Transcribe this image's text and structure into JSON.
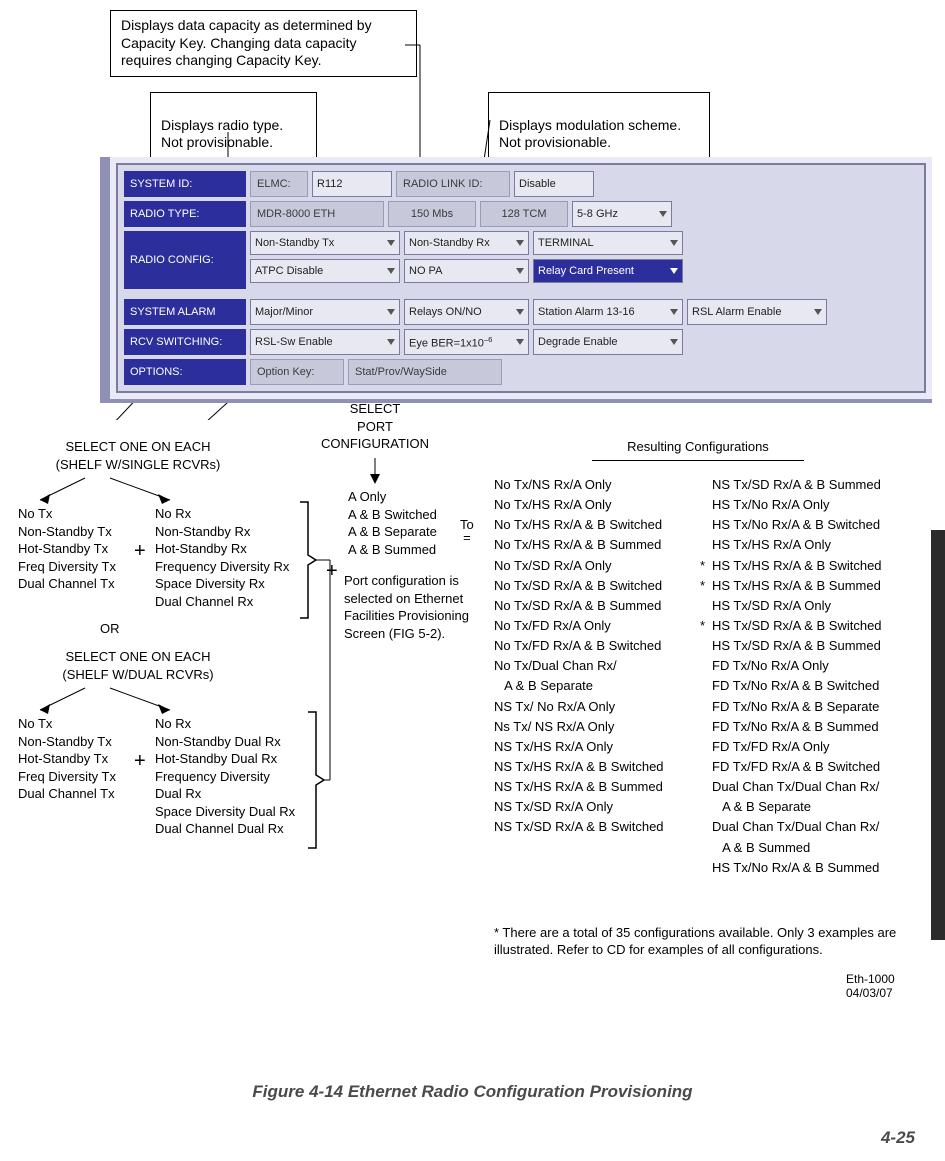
{
  "callouts": {
    "capacity": "Displays data capacity as determined by Capacity Key. Changing data capacity requires changing Capacity Key.",
    "radio_type": "Displays radio type.\nNot provisionable.",
    "modulation": "Displays modulation scheme.\nNot provisionable."
  },
  "panel": {
    "rows": {
      "system_id": {
        "label": "SYSTEM ID:",
        "elmc_label": "ELMC:",
        "elmc_value": "R112",
        "radio_link_label": "RADIO LINK ID:",
        "radio_link_value": "Disable"
      },
      "radio_type": {
        "label": "RADIO TYPE:",
        "type_value": "MDR-8000 ETH",
        "capacity_value": "150 Mbs",
        "tcm_value": "128 TCM",
        "freq_value": "5-8 GHz"
      },
      "radio_config": {
        "label": "RADIO CONFIG:",
        "tx_value": "Non-Standby Tx",
        "rx_value": "Non-Standby Rx",
        "term_value": "TERMINAL",
        "atpc_value": "ATPC Disable",
        "pa_value": "NO PA",
        "relay_value": "Relay Card Present"
      },
      "system_alarm": {
        "label": "SYSTEM ALARM",
        "major_value": "Major/Minor",
        "relays_value": "Relays ON/NO",
        "station_value": "Station Alarm 13-16",
        "rsl_value": "RSL Alarm Enable"
      },
      "rcv_switching": {
        "label": "RCV SWITCHING:",
        "rsl_sw_value": "RSL-Sw Enable",
        "eye_value_prefix": "Eye BER=1x10",
        "eye_value_exp": "–6",
        "degrade_value": "Degrade Enable"
      },
      "options": {
        "label": "OPTIONS:",
        "opt_key_label": "Option Key:",
        "stat_value": "Stat/Prov/WaySide"
      }
    }
  },
  "selectors": {
    "single_header": "SELECT ONE ON EACH\n(SHELF W/SINGLE RCVRs)",
    "dual_header": "SELECT ONE ON EACH\n(SHELF W/DUAL RCVRs)",
    "port_header": "SELECT\nPORT\nCONFIGURATION",
    "resulting_header": "Resulting Configurations",
    "tx_list_single": "No Tx\nNon-Standby Tx\nHot-Standby Tx\nFreq Diversity Tx\nDual Channel Tx",
    "rx_list_single": "No Rx\nNon-Standby Rx\nHot-Standby Rx\nFrequency Diversity Rx\nSpace Diversity Rx\nDual Channel Rx",
    "or_label": "OR",
    "tx_list_dual": "No Tx\nNon-Standby Tx\nHot-Standby Tx\nFreq Diversity Tx\nDual Channel Tx",
    "rx_list_dual": "No Rx\nNon-Standby Dual Rx\nHot-Standby Dual Rx\nFrequency Diversity\n   Dual Rx\nSpace Diversity Dual Rx\nDual Channel Dual Rx",
    "port_list": "A Only\nA & B Switched\nA & B Separate\nA & B Summed",
    "port_note": "Port configuration is selected on Ethernet Facilities Provisioning Screen (FIG 5-2).",
    "to_eq": "To\n=",
    "resulting_col1": "No Tx/NS Rx/A Only\nNo Tx/HS Rx/A Only\nNo Tx/HS Rx/A & B Switched\nNo Tx/HS Rx/A & B Summed\nNo Tx/SD Rx/A Only\nNo Tx/SD Rx/A & B Switched\nNo Tx/SD Rx/A & B Summed\nNo Tx/FD Rx/A Only\nNo Tx/FD Rx/A & B Switched\nNo Tx/Dual Chan Rx/\n   A & B Separate\nNS Tx/ No Rx/A Only\nNs Tx/ NS Rx/A Only\nNS Tx/HS Rx/A Only\nNS Tx/HS Rx/A & B Switched\nNS Tx/HS Rx/A & B Summed\nNS Tx/SD Rx/A Only\nNS Tx/SD Rx/A & B Switched",
    "resulting_col2_items": [
      {
        "star": false,
        "text": "NS Tx/SD Rx/A & B Summed"
      },
      {
        "star": false,
        "text": "HS Tx/No Rx/A Only"
      },
      {
        "star": false,
        "text": "HS Tx/No Rx/A & B Switched"
      },
      {
        "star": false,
        "text": "HS Tx/HS Rx/A Only"
      },
      {
        "star": true,
        "text": "HS Tx/HS Rx/A & B Switched"
      },
      {
        "star": true,
        "text": "HS Tx/HS Rx/A & B Summed"
      },
      {
        "star": false,
        "text": "HS Tx/SD Rx/A Only"
      },
      {
        "star": true,
        "text": "HS Tx/SD Rx/A & B Switched"
      },
      {
        "star": false,
        "text": "HS Tx/SD Rx/A & B Summed"
      },
      {
        "star": false,
        "text": "FD Tx/No Rx/A Only"
      },
      {
        "star": false,
        "text": "FD Tx/No Rx/A & B Switched"
      },
      {
        "star": false,
        "text": "FD Tx/No Rx/A & B Separate"
      },
      {
        "star": false,
        "text": "FD Tx/No Rx/A & B Summed"
      },
      {
        "star": false,
        "text": "FD Tx/FD Rx/A Only"
      },
      {
        "star": false,
        "text": "FD Tx/FD Rx/A & B Switched"
      },
      {
        "star": false,
        "text": "Dual Chan Tx/Dual Chan Rx/"
      },
      {
        "star": false,
        "text": "   A & B Separate"
      },
      {
        "star": false,
        "text": "Dual Chan Tx/Dual Chan Rx/"
      },
      {
        "star": false,
        "text": "   A & B Summed"
      },
      {
        "star": false,
        "text": "HS Tx/No Rx/A & B Summed"
      }
    ],
    "footnote": "*  There  are a total of 35 configurations available. Only 3 examples are illustrated. Refer to CD for examples of all configurations.",
    "meta1": "Eth-1000",
    "meta2": "04/03/07"
  },
  "figure_caption": "Figure 4-14   Ethernet Radio Configuration Provisioning",
  "page_number": "4-25"
}
